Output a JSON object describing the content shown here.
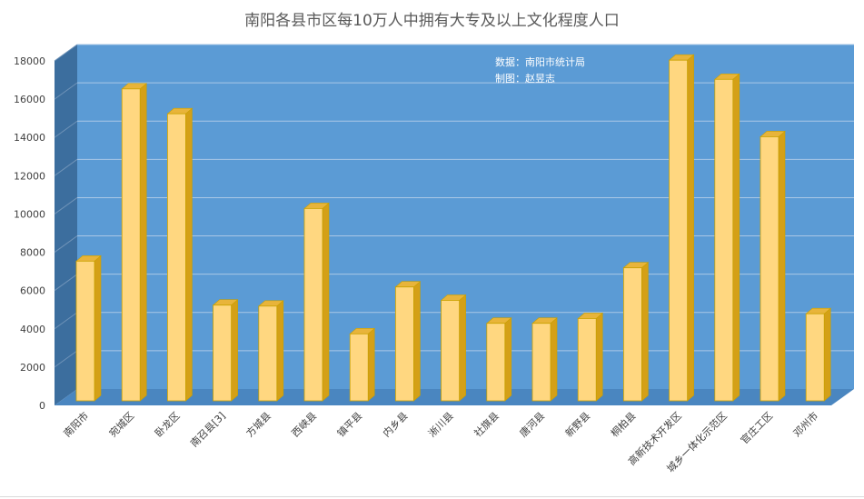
{
  "chart_data": {
    "type": "bar",
    "title": "南阳各县市区每10万人中拥有大专及以上文化程度人口",
    "categories": [
      "南阳市",
      "宛城区",
      "卧龙区",
      "南召县[3]",
      "方城县",
      "西峡县",
      "镇平县",
      "内乡县",
      "淅川县",
      "社旗县",
      "唐河县",
      "新野县",
      "桐柏县",
      "高新技术开发区",
      "城乡一体化示范区",
      "官庄工区",
      "邓州市"
    ],
    "values": [
      7300,
      16300,
      15000,
      5000,
      4950,
      10050,
      3500,
      5950,
      5250,
      4050,
      4050,
      4300,
      6950,
      17800,
      16800,
      13800,
      4550
    ],
    "ylim": [
      0,
      18000
    ],
    "yticks": [
      0,
      2000,
      4000,
      6000,
      8000,
      10000,
      12000,
      14000,
      16000,
      18000
    ],
    "xlabel": "",
    "ylabel": "",
    "grid": true,
    "annotations": [
      "数据：南阳市统计局",
      "制图：赵昱志"
    ],
    "colors": {
      "back_wall": "#5b9bd5",
      "side_wall": "#3c6e9e",
      "floor": "#4a86c0",
      "bar_front": "#ffd780",
      "bar_side": "#d4a017",
      "bar_top": "#e8b43a",
      "bar_edge": "#c9a100",
      "gridline": "#a9c7e6"
    }
  }
}
